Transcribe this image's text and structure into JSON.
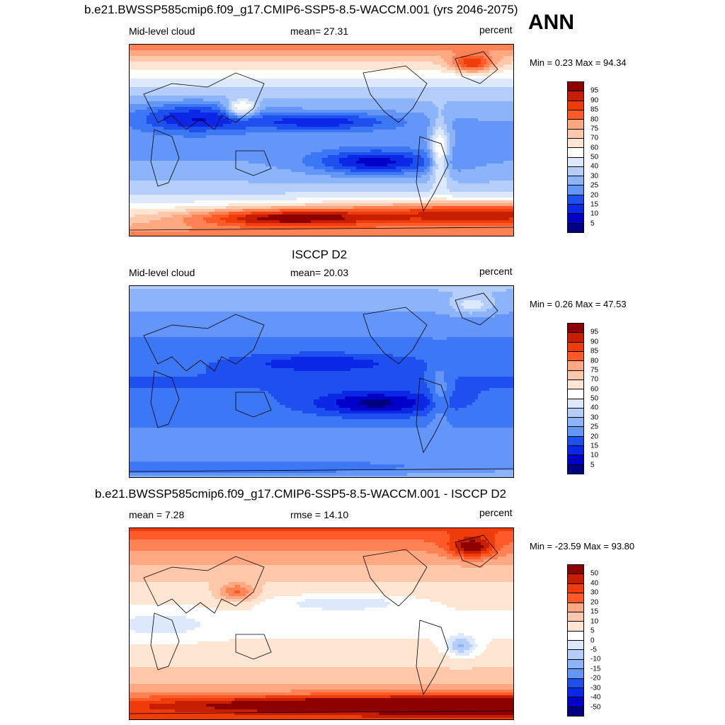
{
  "ann_label": "ANN",
  "colors": {
    "seq": [
      "#000080",
      "#0000c8",
      "#0a28e6",
      "#1e50f0",
      "#3c78f5",
      "#6496fa",
      "#8cb4fa",
      "#b4cdfa",
      "#dce9fc",
      "#ffffff",
      "#ffe6d2",
      "#ffc8aa",
      "#ffa882",
      "#ff8255",
      "#ff5a28",
      "#f03c0a",
      "#c81e00",
      "#8c0000"
    ],
    "diff": [
      "#000080",
      "#0000c8",
      "#0a28e6",
      "#1e50f0",
      "#3c78f5",
      "#6496fa",
      "#8cb4fa",
      "#b4cdfa",
      "#dce9fc",
      "#ffffff",
      "#ffe6d2",
      "#ffc8aa",
      "#ffa882",
      "#ff8255",
      "#ff5a28",
      "#f03c0a",
      "#c81e00",
      "#8c0000"
    ],
    "coast": "#000000"
  },
  "panels": [
    {
      "title": "b.e21.BWSSP585cmip6.f09_g17.CMIP6-SSP5-8.5-WACCM.001 (yrs 2046-2075)",
      "left_label": "Mid-level cloud",
      "center_label": "mean=  27.31",
      "right_label": "percent",
      "stats": "Min =   0.23 Max =  94.34",
      "colorbar_labels": [
        "95",
        "90",
        "85",
        "80",
        "75",
        "70",
        "60",
        "50",
        "40",
        "30",
        "25",
        "20",
        "15",
        "10",
        "5"
      ],
      "palette": "seq"
    },
    {
      "title": "ISCCP D2",
      "left_label": "Mid-level cloud",
      "center_label": "mean=  20.03",
      "right_label": "percent",
      "stats": "Min =   0.26 Max =  47.53",
      "colorbar_labels": [
        "95",
        "90",
        "85",
        "80",
        "75",
        "70",
        "60",
        "50",
        "40",
        "30",
        "25",
        "20",
        "15",
        "10",
        "5"
      ],
      "palette": "seq"
    },
    {
      "title": "b.e21.BWSSP585cmip6.f09_g17.CMIP6-SSP5-8.5-WACCM.001 - ISCCP D2",
      "left_label": "mean =   7.28",
      "center_label": "rmse =  14.10",
      "right_label": "percent",
      "stats": "Min = -23.59 Max =  93.80",
      "colorbar_labels": [
        "50",
        "40",
        "30",
        "20",
        "15",
        "10",
        "5",
        "0",
        "-5",
        "-10",
        "-15",
        "-20",
        "-30",
        "-40",
        "-50"
      ],
      "palette": "diff"
    }
  ]
}
